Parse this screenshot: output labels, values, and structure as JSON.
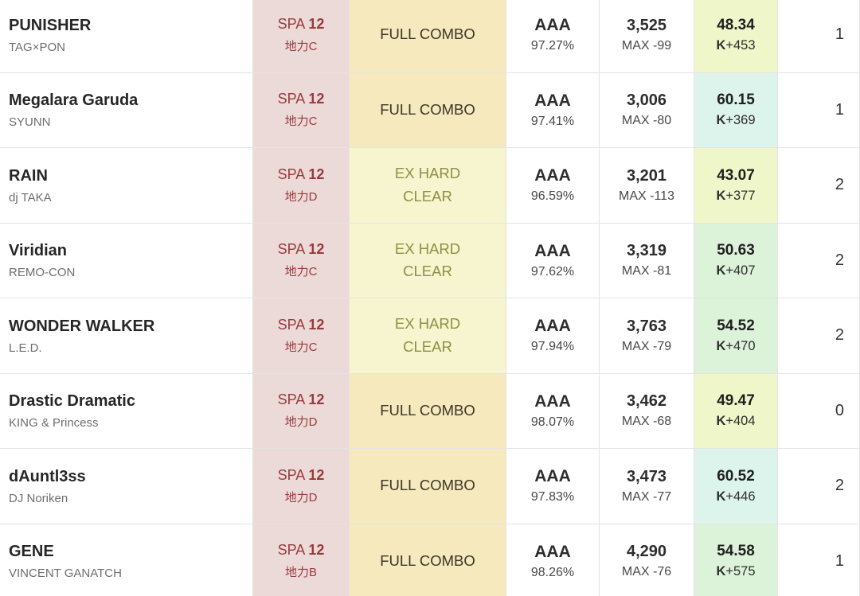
{
  "colors": {
    "row_bg": "#ffffff",
    "border": "#e4e4e4",
    "title_text": "#262626",
    "artist_text": "#6e6e6e",
    "main_text": "#2d2d2d",
    "sub_text": "#484848",
    "chart_bg": "#ecdad8",
    "chart_text": "#983a3c",
    "fc_bg": "#f5e9bd",
    "fc_text": "#3b3726",
    "exh_bg": "#f7f4d0",
    "exh_text": "#8e9041",
    "lime_bg": "#eff7ca",
    "mint_bg": "#ddf4ec",
    "green_bg": "#dcf3da"
  },
  "table": {
    "rows": [
      {
        "title": "PUNISHER",
        "artist": "TAG×PON",
        "chart_label": "SPA",
        "chart_level": "12",
        "tier": "地力C",
        "clear": "FULL COMBO",
        "clear_style": "full-combo",
        "grade": "AAA",
        "percent": "97.27%",
        "score": "3,525",
        "max_diff": "MAX -99",
        "rating": "48.34",
        "k_prefix": "K",
        "k_value": "+453",
        "rating_style": "lime",
        "count": "1"
      },
      {
        "title": "Megalara Garuda",
        "artist": "SYUNN",
        "chart_label": "SPA",
        "chart_level": "12",
        "tier": "地力C",
        "clear": "FULL COMBO",
        "clear_style": "full-combo",
        "grade": "AAA",
        "percent": "97.41%",
        "score": "3,006",
        "max_diff": "MAX -80",
        "rating": "60.15",
        "k_prefix": "K",
        "k_value": "+369",
        "rating_style": "mint",
        "count": "1"
      },
      {
        "title": "RAIN",
        "artist": "dj TAKA",
        "chart_label": "SPA",
        "chart_level": "12",
        "tier": "地力D",
        "clear": "EX HARD\nCLEAR",
        "clear_style": "ex-hard",
        "grade": "AAA",
        "percent": "96.59%",
        "score": "3,201",
        "max_diff": "MAX -113",
        "rating": "43.07",
        "k_prefix": "K",
        "k_value": "+377",
        "rating_style": "lime",
        "count": "2"
      },
      {
        "title": "Viridian",
        "artist": "REMO-CON",
        "chart_label": "SPA",
        "chart_level": "12",
        "tier": "地力C",
        "clear": "EX HARD\nCLEAR",
        "clear_style": "ex-hard",
        "grade": "AAA",
        "percent": "97.62%",
        "score": "3,319",
        "max_diff": "MAX -81",
        "rating": "50.63",
        "k_prefix": "K",
        "k_value": "+407",
        "rating_style": "green",
        "count": "2"
      },
      {
        "title": "WONDER WALKER",
        "artist": "L.E.D.",
        "chart_label": "SPA",
        "chart_level": "12",
        "tier": "地力C",
        "clear": "EX HARD\nCLEAR",
        "clear_style": "ex-hard",
        "grade": "AAA",
        "percent": "97.94%",
        "score": "3,763",
        "max_diff": "MAX -79",
        "rating": "54.52",
        "k_prefix": "K",
        "k_value": "+470",
        "rating_style": "green",
        "count": "2"
      },
      {
        "title": "Drastic Dramatic",
        "artist": "KING & Princess",
        "chart_label": "SPA",
        "chart_level": "12",
        "tier": "地力D",
        "clear": "FULL COMBO",
        "clear_style": "full-combo",
        "grade": "AAA",
        "percent": "98.07%",
        "score": "3,462",
        "max_diff": "MAX -68",
        "rating": "49.47",
        "k_prefix": "K",
        "k_value": "+404",
        "rating_style": "lime",
        "count": "0"
      },
      {
        "title": "dAuntl3ss",
        "artist": "DJ Noriken",
        "chart_label": "SPA",
        "chart_level": "12",
        "tier": "地力D",
        "clear": "FULL COMBO",
        "clear_style": "full-combo",
        "grade": "AAA",
        "percent": "97.83%",
        "score": "3,473",
        "max_diff": "MAX -77",
        "rating": "60.52",
        "k_prefix": "K",
        "k_value": "+446",
        "rating_style": "mint",
        "count": "2"
      },
      {
        "title": "GENE",
        "artist": "VINCENT GANATCH",
        "chart_label": "SPA",
        "chart_level": "12",
        "tier": "地力B",
        "clear": "FULL COMBO",
        "clear_style": "full-combo",
        "grade": "AAA",
        "percent": "98.26%",
        "score": "4,290",
        "max_diff": "MAX -76",
        "rating": "54.58",
        "k_prefix": "K",
        "k_value": "+575",
        "rating_style": "green",
        "count": "1"
      }
    ]
  }
}
